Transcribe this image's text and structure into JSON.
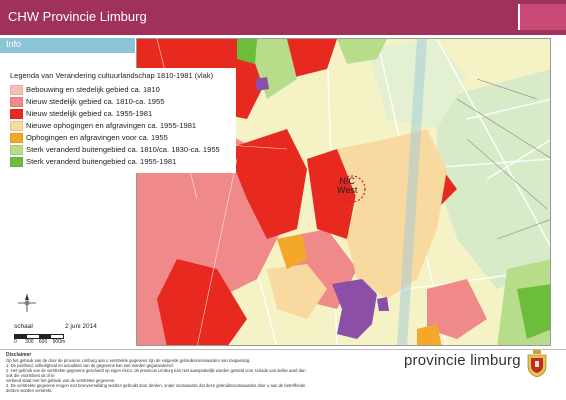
{
  "header": {
    "title": "CHW Provincie Limburg"
  },
  "info_tab": {
    "label": "Info"
  },
  "legend": {
    "title": "Legenda van Verandering cultuurlandschap 1810-1981 (vlak)",
    "items": [
      {
        "label": "Bebouwing en stedelijk gebied ca. 1810",
        "color": "#f4c0b6"
      },
      {
        "label": "Nieuw stedelijk gebied ca. 1810-ca. 1955",
        "color": "#f08a8a"
      },
      {
        "label": "Nieuw stedelijk gebied ca. 1955-1981",
        "color": "#e8291f"
      },
      {
        "label": "Nieuwe ophogingen en afgravingen ca. 1955-1981",
        "color": "#f8d9a0"
      },
      {
        "label": "Ophogingen en afgravingen voor ca. 1955",
        "color": "#f4a82a"
      },
      {
        "label": "Sterk veranderd buitengebied ca. 1810/ca. 1830-ca. 1955",
        "color": "#b7dc8a"
      },
      {
        "label": "Sterk veranderd buitengebied ca. 1955-1981",
        "color": "#6cbd3c"
      }
    ]
  },
  "map": {
    "place_label_line1": "NIC",
    "place_label_line2": "West"
  },
  "scale": {
    "label": "schaal",
    "date": "2 juni 2014",
    "ticks": [
      "0",
      "300",
      "600",
      "900m"
    ]
  },
  "footer": {
    "disclaimer_title": "Disclaimer",
    "disclaimer_lines": [
      "Op het gebruik van de door de provincie Limburg aan u verstrekte gegevens zijn de volgende gebruiksvoorwaarden van toepassing.",
      "1. De juistheid, volledigheid en actualiteit van de gegevens kan niet worden gegarandeerd.",
      "2. Het gebruik van de verstrekte gegevens geschiedt op eigen risico, de provincie Limburg kan niet aansprakelijk worden gesteld voor schade van welke aard dan ook die voortvloeit uit of in",
      "verband staat met het gebruik van de verstrekte gegevens.",
      "3. De verstrekte gegevens mogen met bronvermelding worden gebruikt door derden, onder voorwaarde dat deze gebruiksvoorwaarden door u aan de betreffende derden worden verstrekt."
    ],
    "brand": "provincie limburg"
  },
  "colors": {
    "header": "#a0315a",
    "info_bar": "#8bc4d6",
    "map_base": "#f5f3c5",
    "road": "#ffffff",
    "water": "#9ec9d8",
    "forest": "#cfe6c0",
    "purple": "#8c4fa8"
  }
}
